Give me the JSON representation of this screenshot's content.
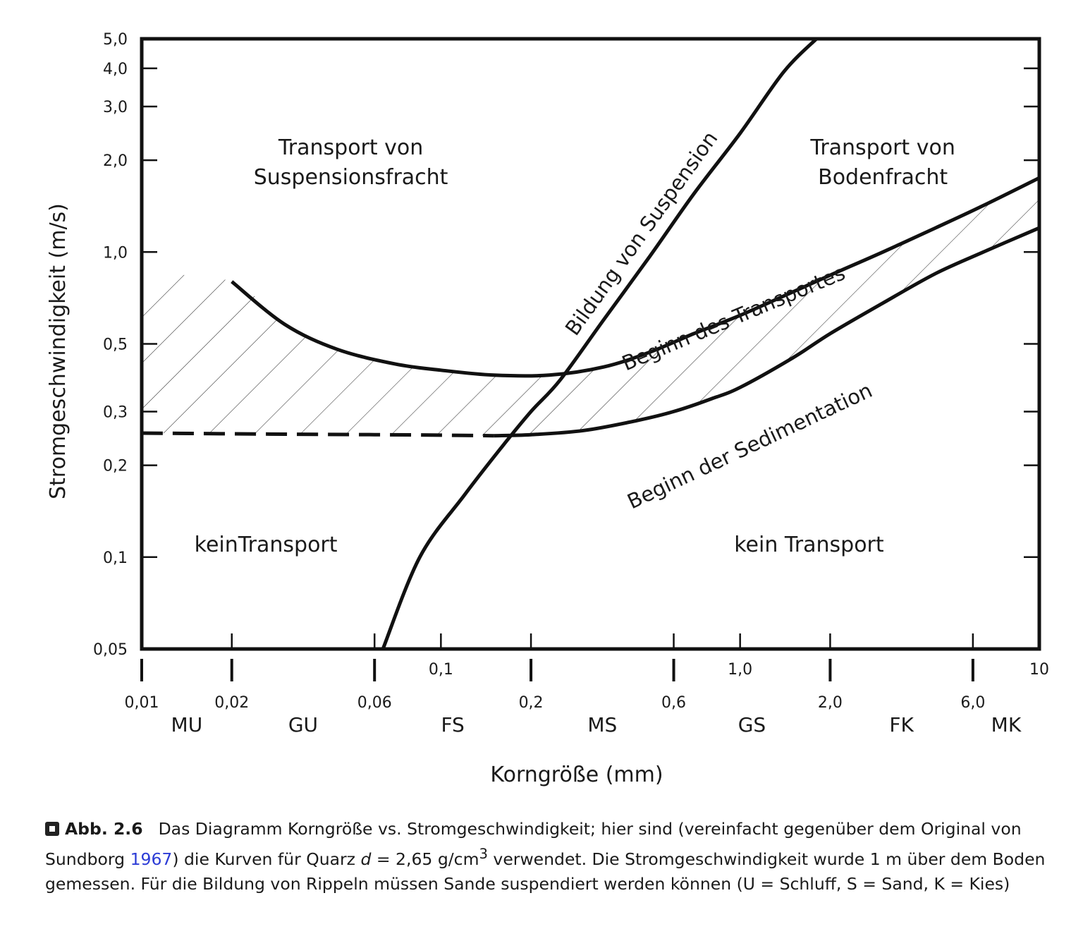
{
  "chart_data": {
    "type": "line",
    "xlabel": "Korngröße (mm)",
    "ylabel": "Stromgeschwindigkeit (m/s)",
    "x_scale": "log",
    "y_scale": "log",
    "xlim": [
      0.01,
      10
    ],
    "ylim": [
      0.05,
      5.0
    ],
    "grid": false,
    "y_ticks": [
      {
        "value": 5.0,
        "label": "5,0"
      },
      {
        "value": 4.0,
        "label": "4,0"
      },
      {
        "value": 3.0,
        "label": "3,0"
      },
      {
        "value": 2.0,
        "label": "2,0"
      },
      {
        "value": 1.0,
        "label": "1,0"
      },
      {
        "value": 0.5,
        "label": "0,5"
      },
      {
        "value": 0.3,
        "label": "0,3"
      },
      {
        "value": 0.2,
        "label": "0,2"
      },
      {
        "value": 0.1,
        "label": "0,1"
      },
      {
        "value": 0.05,
        "label": "0,05"
      }
    ],
    "x_ticks_upper": [
      {
        "value": 0.1,
        "label": "0,1"
      },
      {
        "value": 1.0,
        "label": "1,0"
      },
      {
        "value": 10,
        "label": "10"
      }
    ],
    "x_ticks_lower": [
      {
        "value": 0.01,
        "label": "0,01"
      },
      {
        "value": 0.02,
        "label": "0,02"
      },
      {
        "value": 0.06,
        "label": "0,06"
      },
      {
        "value": 0.2,
        "label": "0,2"
      },
      {
        "value": 0.6,
        "label": "0,6"
      },
      {
        "value": 2.0,
        "label": "2,0"
      },
      {
        "value": 6.0,
        "label": "6,0"
      }
    ],
    "grain_classes": [
      {
        "label": "MU",
        "from": 0.01,
        "to": 0.02
      },
      {
        "label": "GU",
        "from": 0.02,
        "to": 0.06
      },
      {
        "label": "FS",
        "from": 0.06,
        "to": 0.2
      },
      {
        "label": "MS",
        "from": 0.2,
        "to": 0.6
      },
      {
        "label": "GS",
        "from": 0.6,
        "to": 2.0
      },
      {
        "label": "FK",
        "from": 2.0,
        "to": 6.0
      },
      {
        "label": "MK",
        "from": 6.0,
        "to": 10
      }
    ],
    "series": [
      {
        "name": "Bildung von Suspension",
        "x": [
          0.064,
          0.085,
          0.12,
          0.16,
          0.2,
          0.25,
          0.35,
          0.5,
          0.7,
          1.0,
          1.4,
          1.8
        ],
        "y": [
          0.05,
          0.1,
          0.16,
          0.23,
          0.3,
          0.38,
          0.6,
          0.97,
          1.55,
          2.45,
          3.9,
          5.0
        ]
      },
      {
        "name": "Beginn des Transportes",
        "x": [
          0.02,
          0.03,
          0.045,
          0.07,
          0.1,
          0.15,
          0.23,
          0.35,
          0.5,
          0.7,
          1.0,
          1.5,
          2.0,
          3.0,
          4.5,
          6.5,
          10
        ],
        "y": [
          0.8,
          0.58,
          0.48,
          0.43,
          0.41,
          0.395,
          0.395,
          0.42,
          0.47,
          0.54,
          0.62,
          0.74,
          0.84,
          1.0,
          1.2,
          1.42,
          1.75
        ]
      },
      {
        "name": "Beginn der Sedimentation",
        "style": "solid",
        "x": [
          0.15,
          0.2,
          0.3,
          0.45,
          0.6,
          0.8,
          1.0,
          1.5,
          2.0,
          3.0,
          4.5,
          6.5,
          10
        ],
        "y": [
          0.25,
          0.252,
          0.26,
          0.28,
          0.3,
          0.33,
          0.36,
          0.45,
          0.54,
          0.68,
          0.85,
          1.0,
          1.2
        ]
      },
      {
        "name": "",
        "style": "dashed",
        "x": [
          0.01,
          0.03,
          0.06,
          0.1,
          0.15
        ],
        "y": [
          0.255,
          0.253,
          0.252,
          0.251,
          0.25
        ]
      }
    ],
    "hatched_band": {
      "upper_x": [
        0.01,
        0.02,
        0.03,
        0.045,
        0.07,
        0.1,
        0.15,
        0.23,
        0.35,
        0.5,
        0.7,
        1.0,
        1.5,
        2.0,
        3.0,
        4.5,
        6.5,
        10
      ],
      "upper_y": [
        0.85,
        0.8,
        0.58,
        0.48,
        0.43,
        0.41,
        0.395,
        0.395,
        0.42,
        0.47,
        0.54,
        0.62,
        0.74,
        0.84,
        1.0,
        1.2,
        1.42,
        1.75
      ],
      "lower_x": [
        0.01,
        0.03,
        0.06,
        0.1,
        0.15,
        0.2,
        0.3,
        0.45,
        0.6,
        0.8,
        1.0,
        1.5,
        2.0,
        3.0,
        4.5,
        6.5,
        10
      ],
      "lower_y": [
        0.255,
        0.253,
        0.252,
        0.251,
        0.25,
        0.252,
        0.26,
        0.28,
        0.3,
        0.33,
        0.36,
        0.45,
        0.54,
        0.68,
        0.85,
        1.0,
        1.2
      ]
    },
    "region_labels": [
      {
        "lines": [
          "Transport von",
          "Suspensionsfracht"
        ],
        "x": 0.05,
        "y": 2.0
      },
      {
        "lines": [
          "Transport von",
          "Bodenfracht"
        ],
        "x": 3.0,
        "y": 2.0
      },
      {
        "lines": [
          "keinTransport"
        ],
        "x": 0.026,
        "y": 0.1
      },
      {
        "lines": [
          "kein Transport"
        ],
        "x": 1.7,
        "y": 0.1
      }
    ],
    "curve_labels": [
      {
        "text": "Bildung von Suspension",
        "x": 0.52,
        "y": 1.07
      },
      {
        "text": "Beginn des Transportes",
        "x": 1.0,
        "y": 0.54
      },
      {
        "text": "Beginn der Sedimentation",
        "x": 1.0,
        "y": 0.27
      }
    ]
  },
  "caption": {
    "label": "Abb. 2.6",
    "text_before_year": "Das Diagramm Korngröße vs. Stromgeschwindigkeit; hier sind (vereinfacht gegenüber dem Original von Sundborg ",
    "year": "1967",
    "text_after_year": ") die Kurven für Quarz ",
    "symbol": "d",
    "text_density": " = 2,65 g/cm",
    "superscript": "3",
    "text_end": " verwendet. Die Stromgeschwindigkeit wurde 1 m über dem Boden gemessen. Für die Bildung von Rippeln müssen Sande suspendiert werden können (U = Schluff, S = Sand, K = Kies)"
  }
}
